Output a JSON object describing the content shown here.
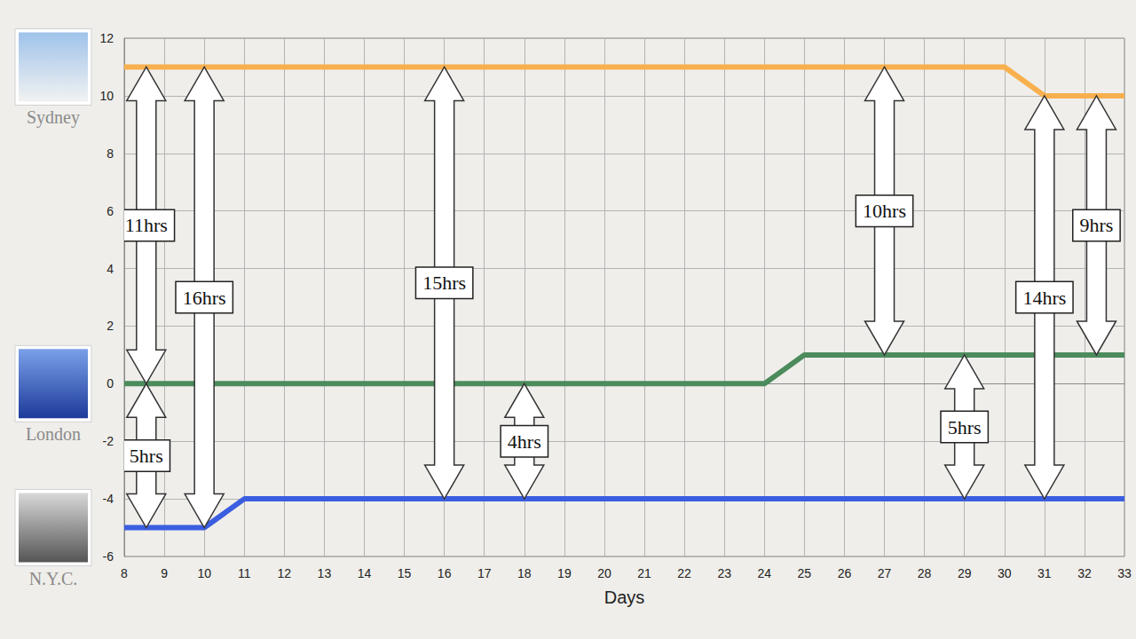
{
  "chart_data": {
    "type": "line",
    "x_label": "Days",
    "x": [
      8,
      9,
      10,
      11,
      12,
      13,
      14,
      15,
      16,
      17,
      18,
      19,
      20,
      21,
      22,
      23,
      24,
      25,
      26,
      27,
      28,
      29,
      30,
      31,
      32,
      33
    ],
    "series": [
      {
        "name": "Sydney",
        "color": "#f8b04e",
        "values": [
          11,
          11,
          11,
          11,
          11,
          11,
          11,
          11,
          11,
          11,
          11,
          11,
          11,
          11,
          11,
          11,
          11,
          11,
          11,
          11,
          11,
          11,
          11,
          10,
          10,
          10
        ]
      },
      {
        "name": "London",
        "color": "#4c8b5c",
        "values": [
          0,
          0,
          0,
          0,
          0,
          0,
          0,
          0,
          0,
          0,
          0,
          0,
          0,
          0,
          0,
          0,
          0,
          1,
          1,
          1,
          1,
          1,
          1,
          1,
          1,
          1
        ]
      },
      {
        "name": "N.Y.C.",
        "color": "#3b5ee0",
        "values": [
          -5,
          -5,
          -5,
          -4,
          -4,
          -4,
          -4,
          -4,
          -4,
          -4,
          -4,
          -4,
          -4,
          -4,
          -4,
          -4,
          -4,
          -4,
          -4,
          -4,
          -4,
          -4,
          -4,
          -4,
          -4,
          -4
        ]
      }
    ],
    "xlim": [
      8,
      33
    ],
    "xticks": [
      8,
      9,
      10,
      11,
      12,
      13,
      14,
      15,
      16,
      17,
      18,
      19,
      20,
      21,
      22,
      23,
      24,
      25,
      26,
      27,
      28,
      29,
      30,
      31,
      32,
      33
    ],
    "ylim": [
      -6,
      12
    ],
    "yticks": [
      -6,
      -4,
      -2,
      0,
      2,
      4,
      6,
      8,
      10,
      12
    ],
    "grid": true,
    "annotations": [
      {
        "text": "11hrs",
        "x": 8.55,
        "from": 11,
        "to": 0
      },
      {
        "text": "5hrs",
        "x": 8.55,
        "from": 0,
        "to": -5
      },
      {
        "text": "16hrs",
        "x": 10,
        "from": 11,
        "to": -5
      },
      {
        "text": "15hrs",
        "x": 16,
        "from": 11,
        "to": -4
      },
      {
        "text": "4hrs",
        "x": 18,
        "from": 0,
        "to": -4
      },
      {
        "text": "10hrs",
        "x": 27,
        "from": 11,
        "to": 1
      },
      {
        "text": "5hrs",
        "x": 29,
        "from": 1,
        "to": -4
      },
      {
        "text": "14hrs",
        "x": 31,
        "from": 10,
        "to": -4
      },
      {
        "text": "9hrs",
        "x": 32.3,
        "from": 10,
        "to": 1
      }
    ]
  }
}
